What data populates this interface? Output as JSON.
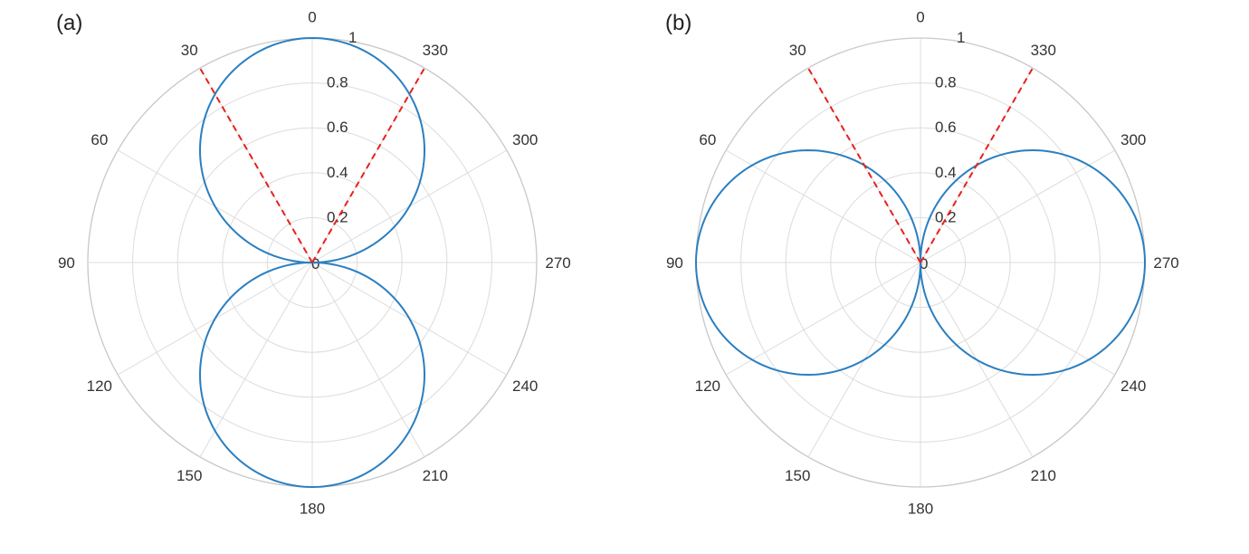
{
  "chart_data": [
    {
      "type": "polar-line",
      "panel_label": "(a)",
      "theta_zero_location": "top",
      "theta_direction": "counterclockwise",
      "theta_ticks": [
        0,
        30,
        60,
        90,
        120,
        150,
        180,
        210,
        240,
        270,
        300,
        330
      ],
      "theta_tick_labels": [
        "0",
        "30",
        "60",
        "90",
        "120",
        "150",
        "180",
        "210",
        "240",
        "270",
        "300",
        "330"
      ],
      "r_ticks": [
        0,
        0.2,
        0.4,
        0.6,
        0.8,
        1
      ],
      "r_tick_labels": [
        "0",
        "0.2",
        "0.4",
        "0.6",
        "0.8",
        "1"
      ],
      "rlim": [
        0,
        1
      ],
      "grid": true,
      "series": [
        {
          "kind": "curve",
          "expression": "r = |cos(theta)|",
          "color": "#2a7fc1",
          "style": "solid"
        },
        {
          "kind": "radial-line",
          "theta": 30,
          "r_range": [
            0,
            1
          ],
          "color": "#e8201c",
          "style": "dashed"
        },
        {
          "kind": "radial-line",
          "theta": 330,
          "r_range": [
            0,
            1
          ],
          "color": "#e8201c",
          "style": "dashed"
        }
      ]
    },
    {
      "type": "polar-line",
      "panel_label": "(b)",
      "theta_zero_location": "top",
      "theta_direction": "counterclockwise",
      "theta_ticks": [
        0,
        30,
        60,
        90,
        120,
        150,
        180,
        210,
        240,
        270,
        300,
        330
      ],
      "theta_tick_labels": [
        "0",
        "30",
        "60",
        "90",
        "120",
        "150",
        "180",
        "210",
        "240",
        "270",
        "300",
        "330"
      ],
      "r_ticks": [
        0,
        0.2,
        0.4,
        0.6,
        0.8,
        1
      ],
      "r_tick_labels": [
        "0",
        "0.2",
        "0.4",
        "0.6",
        "0.8",
        "1"
      ],
      "rlim": [
        0,
        1
      ],
      "grid": true,
      "series": [
        {
          "kind": "curve",
          "expression": "r = |sin(theta)|",
          "color": "#2a7fc1",
          "style": "solid"
        },
        {
          "kind": "radial-line",
          "theta": 30,
          "r_range": [
            0,
            1
          ],
          "color": "#e8201c",
          "style": "dashed"
        },
        {
          "kind": "radial-line",
          "theta": 330,
          "r_range": [
            0,
            1
          ],
          "color": "#e8201c",
          "style": "dashed"
        }
      ]
    }
  ]
}
